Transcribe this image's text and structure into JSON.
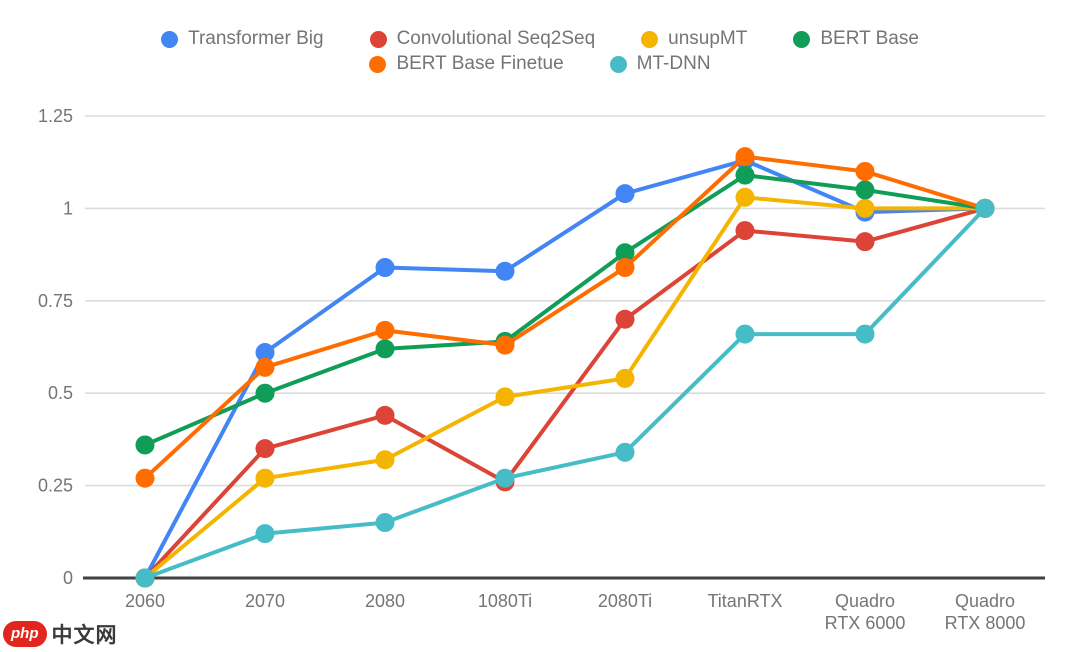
{
  "watermark": {
    "badge_text": "php",
    "site_text": "中文网",
    "badge_color": "#E3261D",
    "text_color": "#3A3A3A"
  },
  "chart_data": {
    "type": "line",
    "title": "",
    "xlabel": "",
    "ylabel": "",
    "ylim": [
      0,
      1.25
    ],
    "grid": true,
    "legend_position": "top",
    "axis_text_color": "#757575",
    "grid_color": "#DBDBDB",
    "axis_line_color": "#424242",
    "yticks": [
      {
        "value": 0,
        "label": "0"
      },
      {
        "value": 0.25,
        "label": "0.25"
      },
      {
        "value": 0.5,
        "label": "0.5"
      },
      {
        "value": 0.75,
        "label": "0.75"
      },
      {
        "value": 1,
        "label": "1"
      },
      {
        "value": 1.25,
        "label": "1.25"
      }
    ],
    "categories": [
      "2060",
      "2070",
      "2080",
      "1080Ti",
      "2080Ti",
      "TitanRTX",
      "Quadro\nRTX 6000",
      "Quadro\nRTX 8000"
    ],
    "series": [
      {
        "name": "Transformer Big",
        "color": "#4285F4",
        "values": [
          0,
          0.61,
          0.84,
          0.83,
          1.04,
          1.13,
          0.99,
          1.0
        ]
      },
      {
        "name": "Convolutional Seq2Seq",
        "color": "#DB4437",
        "values": [
          0,
          0.35,
          0.44,
          0.26,
          0.7,
          0.94,
          0.91,
          1.0
        ]
      },
      {
        "name": "unsupMT",
        "color": "#F4B400",
        "values": [
          0,
          0.27,
          0.32,
          0.49,
          0.54,
          1.03,
          1.0,
          1.0
        ]
      },
      {
        "name": "BERT Base",
        "color": "#0F9D58",
        "values": [
          0.36,
          0.5,
          0.62,
          0.64,
          0.88,
          1.09,
          1.05,
          1.0
        ]
      },
      {
        "name": "BERT Base Finetue",
        "color": "#FF6D00",
        "values": [
          0.27,
          0.57,
          0.67,
          0.63,
          0.84,
          1.14,
          1.1,
          1.0
        ]
      },
      {
        "name": "MT-DNN",
        "color": "#46BDC6",
        "values": [
          0,
          0.12,
          0.15,
          0.27,
          0.34,
          0.66,
          0.66,
          1.0
        ]
      }
    ],
    "legend_rows": [
      [
        0,
        1,
        2,
        3
      ],
      [
        4,
        5
      ]
    ]
  }
}
